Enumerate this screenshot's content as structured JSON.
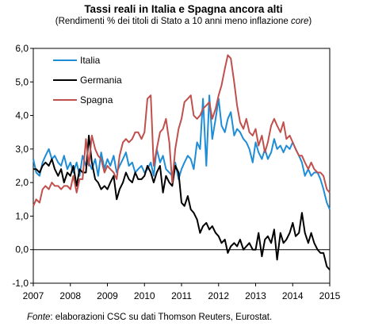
{
  "chart_data": {
    "type": "line",
    "title": "Tassi reali in Italia e Spagna ancora alti",
    "subtitle_parts": [
      "(Rendimenti % dei titoli di Stato a 10 anni meno inflazione ",
      "core",
      ")"
    ],
    "x_ticks": [
      "2007",
      "2008",
      "2009",
      "2010",
      "2011",
      "2012",
      "2013",
      "2014",
      "2015"
    ],
    "y_ticks": [
      "6,0",
      "5,0",
      "4,0",
      "3,0",
      "2,0",
      "1,0",
      "0,0",
      "-1,0"
    ],
    "ylim": [
      -1.0,
      6.0
    ],
    "xlim": [
      2007.0,
      2015.0
    ],
    "legend_position": "top-left",
    "series": [
      {
        "name": "Italia",
        "color": "#1f8dd6",
        "x": [
          2007.0,
          2007.08,
          2007.17,
          2007.25,
          2007.33,
          2007.42,
          2007.5,
          2007.58,
          2007.67,
          2007.75,
          2007.83,
          2007.92,
          2008.0,
          2008.08,
          2008.17,
          2008.25,
          2008.33,
          2008.42,
          2008.5,
          2008.58,
          2008.67,
          2008.75,
          2008.83,
          2008.92,
          2009.0,
          2009.08,
          2009.17,
          2009.25,
          2009.33,
          2009.42,
          2009.5,
          2009.58,
          2009.67,
          2009.75,
          2009.83,
          2009.92,
          2010.0,
          2010.08,
          2010.17,
          2010.25,
          2010.33,
          2010.42,
          2010.5,
          2010.58,
          2010.67,
          2010.75,
          2010.83,
          2010.92,
          2011.0,
          2011.08,
          2011.17,
          2011.25,
          2011.33,
          2011.42,
          2011.5,
          2011.58,
          2011.67,
          2011.75,
          2011.83,
          2011.92,
          2012.0,
          2012.08,
          2012.17,
          2012.25,
          2012.33,
          2012.42,
          2012.5,
          2012.58,
          2012.67,
          2012.75,
          2012.83,
          2012.92,
          2013.0,
          2013.08,
          2013.17,
          2013.25,
          2013.33,
          2013.42,
          2013.5,
          2013.58,
          2013.67,
          2013.75,
          2013.83,
          2013.92,
          2014.0,
          2014.08,
          2014.17,
          2014.25,
          2014.33,
          2014.42,
          2014.5,
          2014.58,
          2014.67,
          2014.75,
          2014.83,
          2014.92,
          2015.0
        ],
        "values": [
          2.7,
          2.3,
          2.2,
          2.6,
          2.8,
          3.0,
          2.7,
          2.8,
          2.6,
          2.5,
          2.8,
          2.4,
          2.6,
          2.3,
          2.6,
          2.2,
          2.8,
          2.5,
          2.6,
          2.4,
          2.7,
          2.2,
          2.9,
          2.4,
          2.7,
          2.5,
          2.8,
          2.3,
          2.5,
          2.7,
          2.9,
          2.5,
          2.6,
          2.3,
          2.4,
          2.5,
          2.3,
          2.4,
          2.6,
          2.2,
          3.0,
          2.6,
          2.8,
          2.4,
          2.3,
          2.2,
          2.6,
          2.1,
          2.4,
          2.6,
          2.8,
          2.7,
          2.4,
          3.2,
          3.0,
          4.5,
          2.5,
          4.6,
          3.3,
          3.9,
          4.5,
          3.7,
          3.5,
          3.9,
          4.1,
          3.4,
          3.6,
          3.5,
          3.3,
          3.2,
          3.0,
          2.6,
          3.2,
          2.9,
          2.7,
          3.0,
          2.7,
          2.9,
          3.3,
          3.0,
          3.1,
          2.9,
          3.1,
          3.0,
          3.2,
          3.0,
          2.8,
          2.6,
          2.2,
          2.4,
          2.2,
          2.3,
          2.3,
          2.1,
          1.8,
          1.4,
          1.2
        ]
      },
      {
        "name": "Germania",
        "color": "#000000",
        "x": [
          2007.0,
          2007.08,
          2007.17,
          2007.25,
          2007.33,
          2007.42,
          2007.5,
          2007.58,
          2007.67,
          2007.75,
          2007.83,
          2007.92,
          2008.0,
          2008.08,
          2008.17,
          2008.25,
          2008.33,
          2008.42,
          2008.5,
          2008.58,
          2008.67,
          2008.75,
          2008.83,
          2008.92,
          2009.0,
          2009.08,
          2009.17,
          2009.25,
          2009.33,
          2009.42,
          2009.5,
          2009.58,
          2009.67,
          2009.75,
          2009.83,
          2009.92,
          2010.0,
          2010.08,
          2010.17,
          2010.25,
          2010.33,
          2010.42,
          2010.5,
          2010.58,
          2010.67,
          2010.75,
          2010.83,
          2010.92,
          2011.0,
          2011.08,
          2011.17,
          2011.25,
          2011.33,
          2011.42,
          2011.5,
          2011.58,
          2011.67,
          2011.75,
          2011.83,
          2011.92,
          2012.0,
          2012.08,
          2012.17,
          2012.25,
          2012.33,
          2012.42,
          2012.5,
          2012.58,
          2012.67,
          2012.75,
          2012.83,
          2012.92,
          2013.0,
          2013.08,
          2013.17,
          2013.25,
          2013.33,
          2013.42,
          2013.5,
          2013.58,
          2013.67,
          2013.75,
          2013.83,
          2013.92,
          2014.0,
          2014.08,
          2014.17,
          2014.25,
          2014.33,
          2014.42,
          2014.5,
          2014.58,
          2014.67,
          2014.75,
          2014.83,
          2014.92,
          2015.0
        ],
        "values": [
          2.4,
          2.4,
          2.3,
          2.5,
          2.6,
          2.5,
          2.7,
          2.4,
          2.2,
          2.4,
          2.0,
          2.3,
          2.2,
          2.5,
          1.9,
          2.4,
          2.3,
          2.3,
          3.4,
          2.6,
          2.1,
          2.0,
          1.8,
          1.9,
          1.8,
          2.0,
          2.2,
          1.5,
          1.8,
          2.0,
          2.3,
          2.1,
          2.0,
          2.3,
          2.1,
          2.1,
          2.2,
          2.5,
          2.3,
          2.0,
          2.3,
          2.5,
          1.7,
          2.2,
          2.0,
          1.9,
          2.5,
          2.3,
          1.4,
          1.3,
          1.6,
          1.2,
          1.1,
          0.9,
          0.5,
          0.7,
          0.8,
          0.6,
          0.7,
          0.5,
          0.4,
          0.2,
          0.3,
          -0.1,
          0.1,
          0.2,
          0.1,
          0.3,
          0.0,
          0.1,
          0.2,
          0.0,
          0.0,
          0.5,
          -0.2,
          0.3,
          0.4,
          0.2,
          0.6,
          -0.3,
          0.5,
          0.2,
          0.3,
          0.5,
          0.8,
          0.4,
          0.5,
          1.1,
          0.5,
          0.2,
          0.5,
          0.2,
          0.0,
          -0.1,
          -0.1,
          -0.5,
          -0.6
        ]
      },
      {
        "name": "Spagna",
        "color": "#c0504d",
        "x": [
          2007.0,
          2007.08,
          2007.17,
          2007.25,
          2007.33,
          2007.42,
          2007.5,
          2007.58,
          2007.67,
          2007.75,
          2007.83,
          2007.92,
          2008.0,
          2008.08,
          2008.17,
          2008.25,
          2008.33,
          2008.42,
          2008.5,
          2008.58,
          2008.67,
          2008.75,
          2008.83,
          2008.92,
          2009.0,
          2009.08,
          2009.17,
          2009.25,
          2009.33,
          2009.42,
          2009.5,
          2009.58,
          2009.67,
          2009.75,
          2009.83,
          2009.92,
          2010.0,
          2010.08,
          2010.17,
          2010.25,
          2010.33,
          2010.42,
          2010.5,
          2010.58,
          2010.67,
          2010.75,
          2010.83,
          2010.92,
          2011.0,
          2011.08,
          2011.17,
          2011.25,
          2011.33,
          2011.42,
          2011.5,
          2011.58,
          2011.67,
          2011.75,
          2011.83,
          2011.92,
          2012.0,
          2012.08,
          2012.17,
          2012.25,
          2012.33,
          2012.42,
          2012.5,
          2012.58,
          2012.67,
          2012.75,
          2012.83,
          2012.92,
          2013.0,
          2013.08,
          2013.17,
          2013.25,
          2013.33,
          2013.42,
          2013.5,
          2013.58,
          2013.67,
          2013.75,
          2013.83,
          2013.92,
          2014.0,
          2014.08,
          2014.17,
          2014.25,
          2014.33,
          2014.42,
          2014.5,
          2014.58,
          2014.67,
          2014.75,
          2014.83,
          2014.92,
          2015.0
        ],
        "values": [
          1.3,
          1.5,
          1.4,
          1.8,
          1.9,
          1.8,
          2.0,
          1.9,
          1.9,
          1.8,
          1.9,
          1.9,
          1.8,
          2.2,
          1.7,
          2.1,
          2.1,
          3.3,
          2.5,
          3.4,
          3.0,
          2.8,
          2.7,
          2.3,
          2.5,
          2.4,
          2.3,
          2.1,
          2.8,
          3.2,
          3.3,
          3.2,
          3.3,
          3.5,
          3.5,
          3.3,
          3.5,
          4.5,
          4.6,
          2.5,
          3.0,
          3.5,
          3.6,
          3.9,
          3.2,
          2.0,
          3.0,
          3.6,
          3.9,
          4.4,
          4.5,
          4.6,
          4.0,
          3.9,
          4.0,
          4.2,
          4.3,
          4.4,
          3.9,
          4.2,
          4.6,
          4.9,
          5.4,
          5.8,
          5.7,
          5.0,
          4.3,
          3.8,
          3.6,
          3.9,
          3.5,
          3.4,
          3.6,
          3.1,
          3.4,
          2.9,
          3.2,
          3.7,
          3.9,
          3.7,
          3.5,
          3.8,
          3.3,
          3.4,
          3.2,
          3.0,
          2.8,
          2.8,
          2.6,
          2.4,
          2.6,
          2.4,
          2.3,
          2.3,
          2.2,
          1.8,
          1.7
        ]
      }
    ]
  },
  "source": {
    "label": "Fonte",
    "text": ": elaborazioni CSC su dati Thomson Reuters, Eurostat."
  }
}
